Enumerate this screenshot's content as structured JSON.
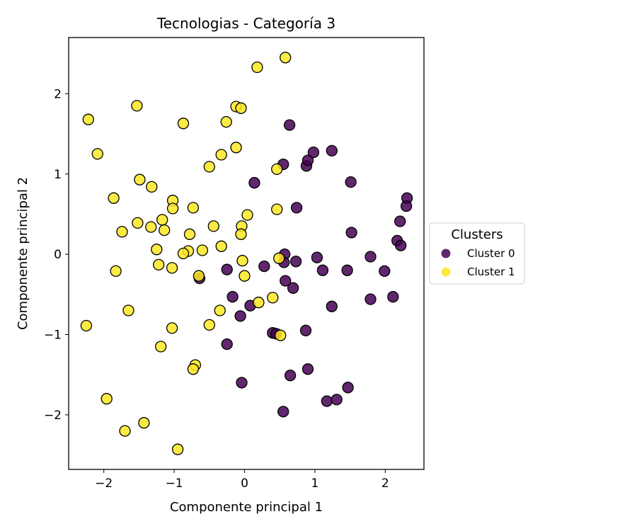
{
  "chart_data": {
    "type": "scatter",
    "title": "Tecnologias - Categoría 3",
    "xlabel": "Componente principal 1",
    "ylabel": "Componente principal 2",
    "xlim": [
      -2.5,
      2.55
    ],
    "ylim": [
      -2.68,
      2.7
    ],
    "xticks": [
      -2,
      -1,
      0,
      1,
      2
    ],
    "yticks": [
      -2,
      -1,
      0,
      1,
      2
    ],
    "grid": false,
    "legend": {
      "title": "Clusters",
      "placement": "center-right, outside plot"
    },
    "series": [
      {
        "name": "Cluster 0",
        "color": "#440154",
        "points": [
          [
            0.64,
            1.61
          ],
          [
            0.55,
            1.12
          ],
          [
            0.88,
            1.1
          ],
          [
            0.9,
            1.17
          ],
          [
            0.98,
            1.27
          ],
          [
            1.24,
            1.29
          ],
          [
            0.14,
            0.89
          ],
          [
            1.51,
            0.9
          ],
          [
            0.74,
            0.58
          ],
          [
            2.31,
            0.7
          ],
          [
            2.3,
            0.6
          ],
          [
            2.21,
            0.41
          ],
          [
            1.52,
            0.27
          ],
          [
            2.17,
            0.17
          ],
          [
            2.22,
            0.11
          ],
          [
            0.57,
            0.0
          ],
          [
            1.03,
            -0.04
          ],
          [
            1.79,
            -0.03
          ],
          [
            0.73,
            -0.09
          ],
          [
            0.56,
            -0.1
          ],
          [
            0.28,
            -0.15
          ],
          [
            -0.25,
            -0.19
          ],
          [
            1.11,
            -0.2
          ],
          [
            1.46,
            -0.2
          ],
          [
            1.99,
            -0.21
          ],
          [
            -0.64,
            -0.3
          ],
          [
            0.58,
            -0.33
          ],
          [
            0.69,
            -0.42
          ],
          [
            -0.17,
            -0.53
          ],
          [
            2.11,
            -0.53
          ],
          [
            1.79,
            -0.56
          ],
          [
            0.08,
            -0.64
          ],
          [
            1.24,
            -0.65
          ],
          [
            -0.06,
            -0.77
          ],
          [
            0.87,
            -0.95
          ],
          [
            0.4,
            -0.98
          ],
          [
            0.45,
            -0.99
          ],
          [
            -0.25,
            -1.12
          ],
          [
            0.9,
            -1.43
          ],
          [
            0.65,
            -1.51
          ],
          [
            -0.04,
            -1.6
          ],
          [
            1.47,
            -1.66
          ],
          [
            1.17,
            -1.83
          ],
          [
            1.31,
            -1.81
          ],
          [
            0.55,
            -1.96
          ]
        ]
      },
      {
        "name": "Cluster 1",
        "color": "#fde725",
        "points": [
          [
            0.58,
            2.45
          ],
          [
            0.18,
            2.33
          ],
          [
            -2.22,
            1.68
          ],
          [
            -1.53,
            1.85
          ],
          [
            -0.12,
            1.84
          ],
          [
            -0.05,
            1.82
          ],
          [
            -0.87,
            1.63
          ],
          [
            -0.26,
            1.65
          ],
          [
            -2.09,
            1.25
          ],
          [
            -0.12,
            1.33
          ],
          [
            -0.33,
            1.24
          ],
          [
            -0.5,
            1.09
          ],
          [
            0.46,
            1.06
          ],
          [
            -1.49,
            0.93
          ],
          [
            -1.32,
            0.84
          ],
          [
            -1.86,
            0.7
          ],
          [
            -1.02,
            0.67
          ],
          [
            -1.02,
            0.57
          ],
          [
            -0.73,
            0.58
          ],
          [
            0.46,
            0.56
          ],
          [
            0.04,
            0.49
          ],
          [
            -1.17,
            0.43
          ],
          [
            -1.52,
            0.39
          ],
          [
            -1.33,
            0.34
          ],
          [
            -0.44,
            0.35
          ],
          [
            -0.04,
            0.35
          ],
          [
            -1.14,
            0.3
          ],
          [
            -1.74,
            0.28
          ],
          [
            -0.78,
            0.25
          ],
          [
            -0.05,
            0.25
          ],
          [
            -0.33,
            0.1
          ],
          [
            -1.25,
            0.06
          ],
          [
            -0.8,
            0.04
          ],
          [
            -0.6,
            0.05
          ],
          [
            -0.87,
            0.01
          ],
          [
            0.49,
            -0.05
          ],
          [
            -0.03,
            -0.08
          ],
          [
            -1.22,
            -0.13
          ],
          [
            -1.03,
            -0.17
          ],
          [
            -1.83,
            -0.21
          ],
          [
            -0.65,
            -0.27
          ],
          [
            0.0,
            -0.27
          ],
          [
            0.4,
            -0.54
          ],
          [
            0.2,
            -0.6
          ],
          [
            -1.65,
            -0.7
          ],
          [
            -0.35,
            -0.7
          ],
          [
            -2.25,
            -0.89
          ],
          [
            -0.5,
            -0.88
          ],
          [
            -1.03,
            -0.92
          ],
          [
            0.51,
            -1.01
          ],
          [
            -1.19,
            -1.15
          ],
          [
            -0.7,
            -1.38
          ],
          [
            -0.73,
            -1.43
          ],
          [
            -1.96,
            -1.8
          ],
          [
            -1.43,
            -2.1
          ],
          [
            -1.7,
            -2.2
          ],
          [
            -0.95,
            -2.43
          ]
        ]
      }
    ]
  }
}
